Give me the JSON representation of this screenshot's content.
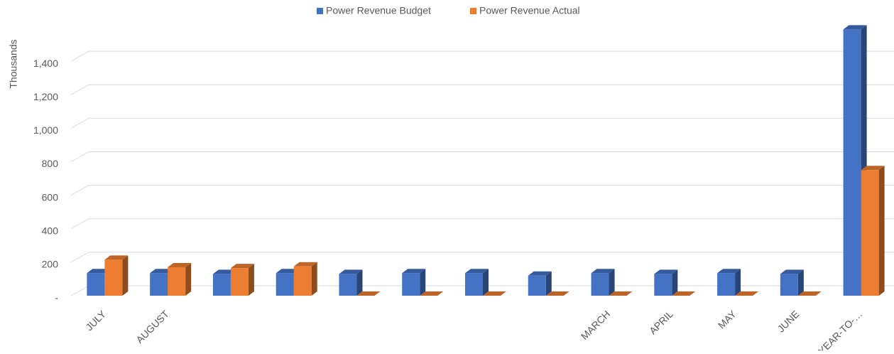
{
  "chart_data": {
    "type": "bar3d",
    "y_label": "Thousands",
    "categories": [
      "JULY",
      "AUGUST",
      null,
      null,
      null,
      null,
      null,
      null,
      "MARCH",
      "APRIL",
      "MAY",
      "JUNE",
      "YEAR-TO-…"
    ],
    "series": [
      {
        "name": "Power Revenue Budget",
        "color": "#4472c4",
        "values": [
          135,
          135,
          130,
          135,
          130,
          135,
          135,
          120,
          135,
          130,
          135,
          130,
          1590
        ]
      },
      {
        "name": "Power Revenue Actual",
        "color": "#ed7d31",
        "values": [
          215,
          170,
          165,
          175,
          0,
          0,
          0,
          0,
          0,
          0,
          0,
          0,
          750
        ]
      }
    ],
    "ylim": [
      0,
      1600
    ],
    "yticks": [
      {
        "value": 0,
        "label": "-"
      },
      200,
      400,
      600,
      800,
      {
        "value": 1000,
        "label": "1,000"
      },
      {
        "value": 1200,
        "label": "1,200"
      },
      {
        "value": 1400,
        "label": "1,400"
      }
    ],
    "grid": true,
    "legend": "top"
  }
}
